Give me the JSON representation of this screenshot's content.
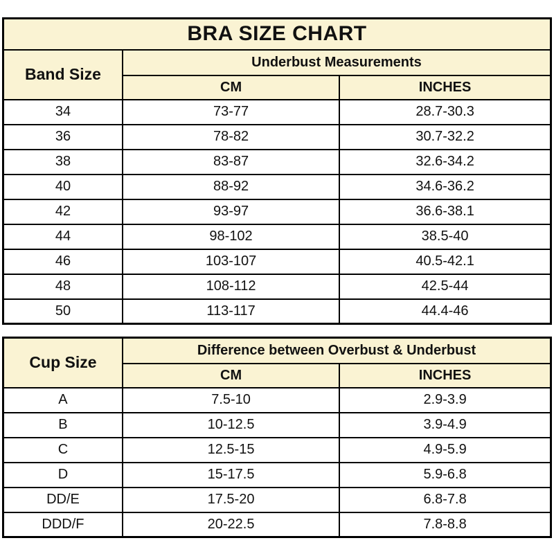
{
  "colors": {
    "header_bg": "#FAF3D3",
    "border": "#000000",
    "text": "#111111",
    "row_bg": "#FFFFFF"
  },
  "chart_data": [
    {
      "type": "table",
      "title": "BRA SIZE CHART",
      "corner_header": "Band Size",
      "group_header": "Underbust Measurements",
      "sub_headers": [
        "CM",
        "INCHES"
      ],
      "rows": [
        {
          "label": "34",
          "cm": "73-77",
          "inches": "28.7-30.3"
        },
        {
          "label": "36",
          "cm": "78-82",
          "inches": "30.7-32.2"
        },
        {
          "label": "38",
          "cm": "83-87",
          "inches": "32.6-34.2"
        },
        {
          "label": "40",
          "cm": "88-92",
          "inches": "34.6-36.2"
        },
        {
          "label": "42",
          "cm": "93-97",
          "inches": "36.6-38.1"
        },
        {
          "label": "44",
          "cm": "98-102",
          "inches": "38.5-40"
        },
        {
          "label": "46",
          "cm": "103-107",
          "inches": "40.5-42.1"
        },
        {
          "label": "48",
          "cm": "108-112",
          "inches": "42.5-44"
        },
        {
          "label": "50",
          "cm": "113-117",
          "inches": "44.4-46"
        }
      ]
    },
    {
      "type": "table",
      "corner_header": "Cup Size",
      "group_header": "Difference between Overbust & Underbust",
      "sub_headers": [
        "CM",
        "INCHES"
      ],
      "rows": [
        {
          "label": "A",
          "cm": "7.5-10",
          "inches": "2.9-3.9"
        },
        {
          "label": "B",
          "cm": "10-12.5",
          "inches": "3.9-4.9"
        },
        {
          "label": "C",
          "cm": "12.5-15",
          "inches": "4.9-5.9"
        },
        {
          "label": "D",
          "cm": "15-17.5",
          "inches": "5.9-6.8"
        },
        {
          "label": "DD/E",
          "cm": "17.5-20",
          "inches": "6.8-7.8"
        },
        {
          "label": "DDD/F",
          "cm": "20-22.5",
          "inches": "7.8-8.8"
        }
      ]
    }
  ]
}
